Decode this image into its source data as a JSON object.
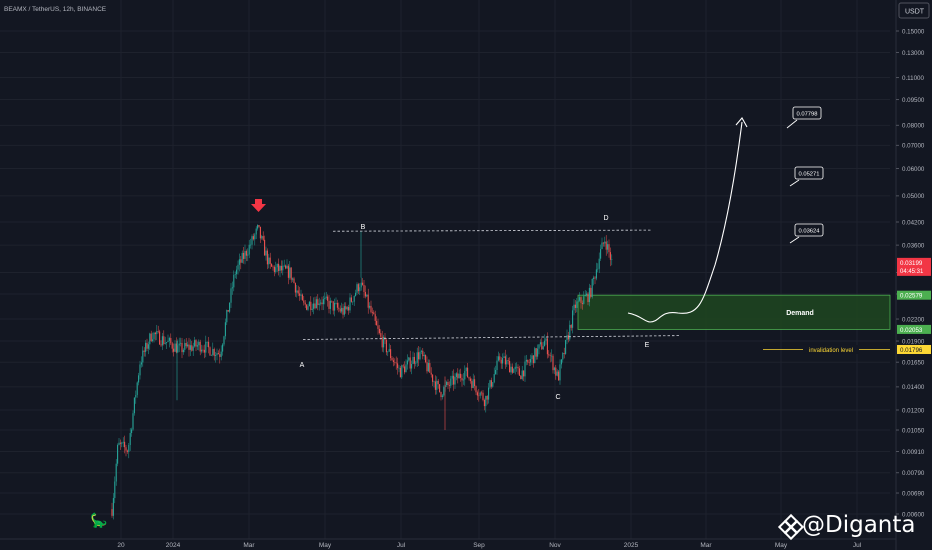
{
  "header": {
    "title": "BEAMX / TetherUS, 12h, BINANCE"
  },
  "axis": {
    "currency": "USDT"
  },
  "chart_data": {
    "type": "candlestick",
    "price_ticks": [
      0.006,
      0.0069,
      0.0079,
      0.0091,
      0.0105,
      0.012,
      0.014,
      0.0165,
      0.019,
      0.022,
      0.026,
      0.03,
      0.036,
      0.042,
      0.05,
      0.06,
      0.07,
      0.08,
      0.095,
      0.11,
      0.13,
      0.15
    ],
    "price_tick_labels": [
      "0.00600",
      "0.00690",
      "0.00790",
      "0.00910",
      "0.01050",
      "0.01200",
      "0.01400",
      "0.01650",
      "0.01900",
      "0.02200",
      "0.02600",
      "0.03000",
      "0.03600",
      "0.04200",
      "0.05000",
      "0.06000",
      "0.07000",
      "0.08000",
      "0.09500",
      "0.11000",
      "0.13000",
      "0.15000"
    ],
    "time_labels": [
      "20",
      "2024",
      "Mar",
      "May",
      "Jul",
      "Sep",
      "Nov",
      "2025",
      "Mar",
      "May",
      "Jul"
    ],
    "scale": "log",
    "ohlc_path_anchors": [
      {
        "x": 112,
        "p": 0.0062
      },
      {
        "x": 118,
        "p": 0.0095
      },
      {
        "x": 128,
        "p": 0.0092
      },
      {
        "x": 140,
        "p": 0.0165
      },
      {
        "x": 152,
        "p": 0.02
      },
      {
        "x": 165,
        "p": 0.019
      },
      {
        "x": 180,
        "p": 0.018
      },
      {
        "x": 200,
        "p": 0.0185
      },
      {
        "x": 220,
        "p": 0.0175
      },
      {
        "x": 235,
        "p": 0.03
      },
      {
        "x": 250,
        "p": 0.036
      },
      {
        "x": 258,
        "p": 0.04
      },
      {
        "x": 270,
        "p": 0.031
      },
      {
        "x": 290,
        "p": 0.03
      },
      {
        "x": 303,
        "p": 0.024
      },
      {
        "x": 320,
        "p": 0.025
      },
      {
        "x": 345,
        "p": 0.023
      },
      {
        "x": 360,
        "p": 0.028
      },
      {
        "x": 380,
        "p": 0.0195
      },
      {
        "x": 400,
        "p": 0.0155
      },
      {
        "x": 420,
        "p": 0.0175
      },
      {
        "x": 440,
        "p": 0.0135
      },
      {
        "x": 465,
        "p": 0.0155
      },
      {
        "x": 485,
        "p": 0.0128
      },
      {
        "x": 500,
        "p": 0.017
      },
      {
        "x": 520,
        "p": 0.0152
      },
      {
        "x": 545,
        "p": 0.019
      },
      {
        "x": 558,
        "p": 0.0148
      },
      {
        "x": 575,
        "p": 0.024
      },
      {
        "x": 590,
        "p": 0.026
      },
      {
        "x": 600,
        "p": 0.034
      },
      {
        "x": 605,
        "p": 0.0375
      },
      {
        "x": 612,
        "p": 0.032
      }
    ],
    "annotations": {
      "points": [
        {
          "label": "A",
          "price": 0.0192
        },
        {
          "label": "B",
          "price": 0.0395
        },
        {
          "label": "C",
          "price": 0.0148
        },
        {
          "label": "D",
          "price": 0.04
        },
        {
          "label": "E",
          "price": 0.0197
        }
      ],
      "demand_zone": {
        "label": "Demand",
        "top": 0.02579,
        "bottom": 0.02053
      },
      "invalidation": {
        "label": "invalidation level",
        "price": 0.01796
      },
      "targets": [
        "0.03624",
        "0.05271",
        "0.07798"
      ],
      "resistance_line": 0.0395,
      "support_line": 0.0192
    },
    "price_badges": [
      {
        "value": "0.03199",
        "sub": "04:45:31",
        "color": "#f23645"
      },
      {
        "value": "0.02579",
        "color": "#4caf50"
      },
      {
        "value": "0.02053",
        "color": "#4caf50"
      },
      {
        "value": "0.01796",
        "color": "#fdd835"
      }
    ]
  },
  "watermark": {
    "text": "@Diganta"
  },
  "colors": {
    "bull": "#26a69a",
    "bear": "#ef5350",
    "bg": "#131722",
    "zone": "#1e4620",
    "zone_border": "#4caf50",
    "invalidation": "#fdd835"
  }
}
